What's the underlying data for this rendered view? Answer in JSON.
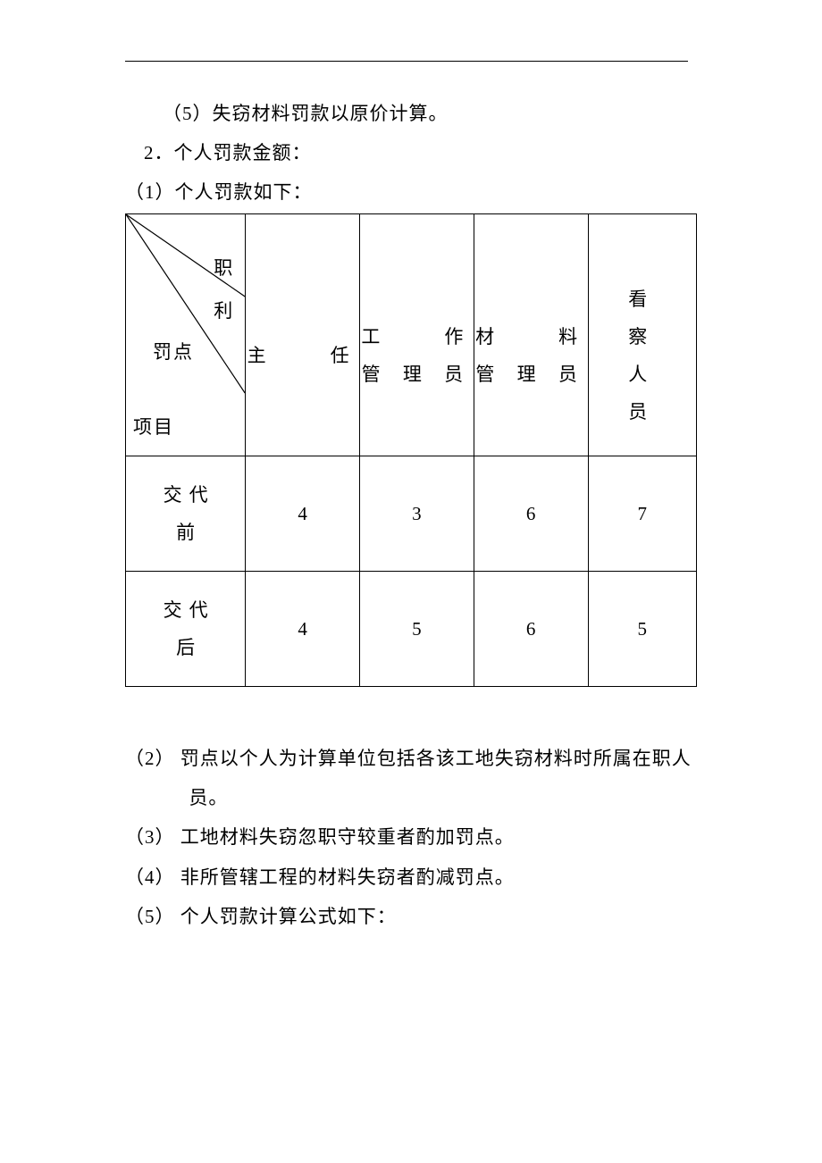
{
  "pre_list": [
    "（5）失窃材料罚款以原价计算。"
  ],
  "section2_heading": "2．个人罚款金额：",
  "section2_sub1": "（1）个人罚款如下：",
  "table": {
    "diag_labels": {
      "top": "职",
      "mid_right": "利",
      "mid_left": "罚点",
      "bottom": "项目"
    },
    "columns": [
      "主任",
      "工作管理员",
      "材料管理员",
      "看察人员"
    ],
    "rows": [
      {
        "label": "交代前",
        "values": [
          "4",
          "3",
          "6",
          "7"
        ]
      },
      {
        "label": "交代后",
        "values": [
          "4",
          "5",
          "6",
          "5"
        ]
      }
    ],
    "col_heads": {
      "zhuRen": {
        "l1": "",
        "l2": "主　　任"
      },
      "gongZuo": {
        "l1": "工　　作",
        "l2": "管 理 员"
      },
      "caiLiao": {
        "l1": "材　　料",
        "l2": "管 理 员"
      },
      "kanCha": {
        "l1": "看　　察",
        "l2": "人　　员"
      }
    }
  },
  "post_list": [
    "（2） 罚点以个人为计算单位包括各该工地失窃材料时所属在职人员。",
    "（3） 工地材料失窃忽职守较重者酌加罚点。",
    "（4） 非所管辖工程的材料失窃者酌减罚点。",
    "（5） 个人罚款计算公式如下："
  ]
}
